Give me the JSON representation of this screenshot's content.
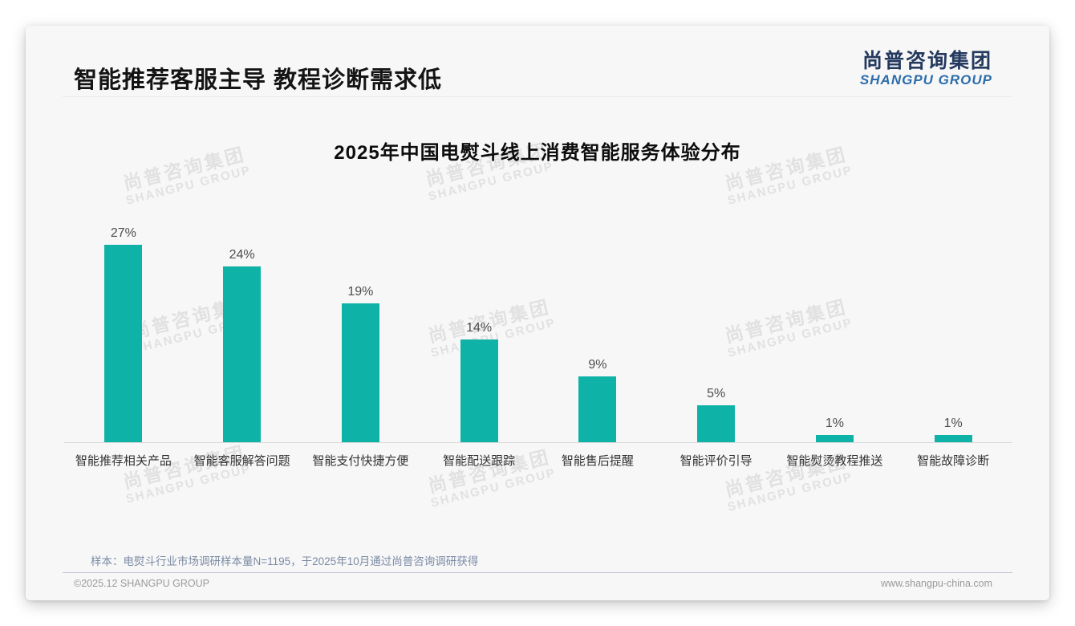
{
  "page": {
    "title": "智能推荐客服主导 教程诊断需求低",
    "logo": {
      "cn": "尚普咨询集团",
      "en": "SHANGPU GROUP"
    },
    "watermark": {
      "cn": "尚普咨询集团",
      "en": "SHANGPU GROUP"
    },
    "note": "样本：电熨斗行业市场调研样本量N=1195，于2025年10月通过尚普咨询调研获得",
    "footer": {
      "copyright": "©2025.12 SHANGPU GROUP",
      "website": "www.shangpu-china.com"
    }
  },
  "colors": {
    "bar": "#0FB2A6",
    "logo_cn": "#24395E",
    "logo_en": "#2D6DA9",
    "note": "#7B8BA3"
  },
  "chart_data": {
    "type": "bar",
    "title": "2025年中国电熨斗线上消费智能服务体验分布",
    "categories": [
      "智能推荐相关产品",
      "智能客服解答问题",
      "智能支付快捷方便",
      "智能配送跟踪",
      "智能售后提醒",
      "智能评价引导",
      "智能熨烫教程推送",
      "智能故障诊断"
    ],
    "values": [
      27,
      24,
      19,
      14,
      9,
      5,
      1,
      1
    ],
    "value_labels": [
      "27%",
      "24%",
      "19%",
      "14%",
      "9%",
      "5%",
      "1%",
      "1%"
    ],
    "unit": "%",
    "xlabel": "",
    "ylabel": "",
    "ylim": [
      0,
      30
    ],
    "grid": false,
    "legend": false,
    "bar_color": "#0FB2A6"
  }
}
